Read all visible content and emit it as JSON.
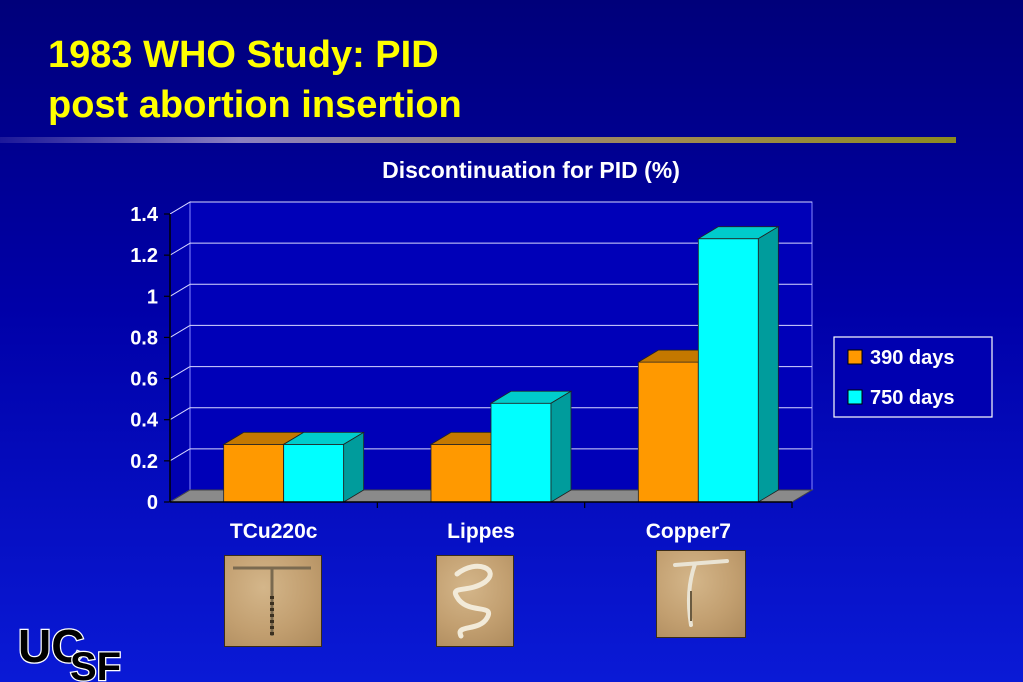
{
  "slide": {
    "title_line1": "1983 WHO Study: PID",
    "title_line2": "post abortion insertion"
  },
  "colors": {
    "title": "#ffff00",
    "series_390": "#ff9900",
    "series_750": "#00ffff",
    "background": "#0000a8"
  },
  "chart_data": {
    "type": "bar",
    "title": "Discontinuation for PID (%)",
    "categories": [
      "TCu220c",
      "Lippes",
      "Copper7"
    ],
    "series": [
      {
        "name": "390 days",
        "values": [
          0.28,
          0.28,
          0.68
        ]
      },
      {
        "name": "750 days",
        "values": [
          0.28,
          0.48,
          1.28
        ]
      }
    ],
    "ylim": [
      0,
      1.4
    ],
    "yticks": [
      "0",
      "0.2",
      "0.4",
      "0.6",
      "0.8",
      "1",
      "1.2",
      "1.4"
    ],
    "grid": true,
    "legend_position": "right",
    "style": "3d"
  },
  "images": [
    {
      "icon": "tcu220c-device-photo"
    },
    {
      "icon": "lippes-loop-photo"
    },
    {
      "icon": "copper7-device-photo"
    }
  ],
  "logo": {
    "text": "UCSF"
  }
}
